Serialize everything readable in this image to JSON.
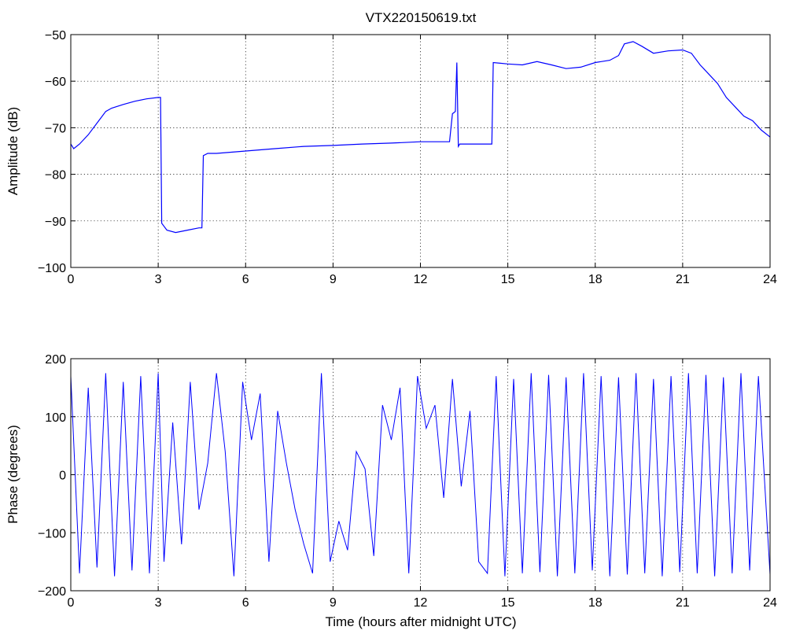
{
  "figure_title": "VTX220150619.txt",
  "chart_data": [
    {
      "type": "line",
      "title": "VTX220150619.txt",
      "xlabel": "",
      "ylabel": "Amplitude (dB)",
      "xlim": [
        0,
        24
      ],
      "ylim": [
        -100,
        -50
      ],
      "xticks": [
        0,
        3,
        6,
        9,
        12,
        15,
        18,
        21,
        24
      ],
      "yticks": [
        -50,
        -60,
        -70,
        -80,
        -90,
        -100
      ],
      "xtick_labels": [
        "0",
        "3",
        "6",
        "9",
        "12",
        "15",
        "18",
        "21",
        "24"
      ],
      "ytick_labels": [
        "−50",
        "−60",
        "−70",
        "−80",
        "−90",
        "−100"
      ],
      "grid": true,
      "color": "#0000ff",
      "series": [
        {
          "x": [
            0.0,
            0.1,
            0.3,
            0.6,
            0.9,
            1.2,
            1.4,
            1.8,
            2.2,
            2.6,
            3.0,
            3.08,
            3.12,
            3.3,
            3.6,
            4.0,
            4.4,
            4.5,
            4.55,
            4.7,
            5.0,
            6.0,
            7.0,
            8.0,
            9.0,
            10.0,
            11.0,
            12.0,
            13.0,
            13.1,
            13.2,
            13.25,
            13.3,
            13.35,
            13.4,
            13.7,
            14.0,
            14.4,
            14.45,
            14.5,
            15.0,
            15.5,
            16.0,
            16.5,
            17.0,
            17.5,
            18.0,
            18.5,
            18.8,
            19.0,
            19.3,
            19.6,
            20.0,
            20.5,
            21.0,
            21.3,
            21.6,
            21.9,
            22.2,
            22.5,
            22.8,
            23.1,
            23.4,
            23.7,
            24.0
          ],
          "y": [
            -73.5,
            -74.5,
            -73.5,
            -71.5,
            -69.0,
            -66.5,
            -65.8,
            -65.0,
            -64.3,
            -63.8,
            -63.5,
            -63.5,
            -90.5,
            -92.0,
            -92.5,
            -92.0,
            -91.5,
            -91.5,
            -76.0,
            -75.5,
            -75.5,
            -75.0,
            -74.5,
            -74.0,
            -73.8,
            -73.5,
            -73.3,
            -73.0,
            -73.0,
            -67.0,
            -66.5,
            -56.0,
            -74.0,
            -73.5,
            -73.5,
            -73.5,
            -73.5,
            -73.5,
            -73.5,
            -56.0,
            -56.3,
            -56.5,
            -55.8,
            -56.5,
            -57.3,
            -57.0,
            -56.0,
            -55.5,
            -54.5,
            -52.0,
            -51.5,
            -52.5,
            -54.0,
            -53.5,
            -53.3,
            -54.0,
            -56.5,
            -58.5,
            -60.5,
            -63.5,
            -65.5,
            -67.5,
            -68.5,
            -70.5,
            -72.0
          ]
        }
      ]
    },
    {
      "type": "line",
      "title": "",
      "xlabel": "Time (hours after midnight UTC)",
      "ylabel": "Phase (degrees)",
      "xlim": [
        0,
        24
      ],
      "ylim": [
        -200,
        200
      ],
      "xticks": [
        0,
        3,
        6,
        9,
        12,
        15,
        18,
        21,
        24
      ],
      "yticks": [
        200,
        100,
        0,
        -100,
        -200
      ],
      "xtick_labels": [
        "0",
        "3",
        "6",
        "9",
        "12",
        "15",
        "18",
        "21",
        "24"
      ],
      "ytick_labels": [
        "200",
        "100",
        "0",
        "−100",
        "−200"
      ],
      "grid": true,
      "color": "#0000ff",
      "series": [
        {
          "x": [
            0.0,
            0.3,
            0.6,
            0.9,
            1.2,
            1.5,
            1.8,
            2.1,
            2.4,
            2.7,
            3.0,
            3.2,
            3.5,
            3.8,
            4.1,
            4.4,
            4.7,
            5.0,
            5.3,
            5.6,
            5.9,
            6.2,
            6.5,
            6.8,
            7.1,
            7.4,
            7.7,
            8.0,
            8.3,
            8.6,
            8.9,
            9.2,
            9.5,
            9.8,
            10.1,
            10.4,
            10.7,
            11.0,
            11.3,
            11.6,
            11.9,
            12.2,
            12.5,
            12.8,
            13.1,
            13.4,
            13.7,
            14.0,
            14.3,
            14.6,
            14.9,
            15.2,
            15.5,
            15.8,
            16.1,
            16.4,
            16.7,
            17.0,
            17.3,
            17.6,
            17.9,
            18.2,
            18.5,
            18.8,
            19.1,
            19.4,
            19.7,
            20.0,
            20.3,
            20.6,
            20.9,
            21.2,
            21.5,
            21.8,
            22.1,
            22.4,
            22.7,
            23.0,
            23.3,
            23.6,
            24.0
          ],
          "y": [
            170,
            -170,
            150,
            -160,
            175,
            -175,
            160,
            -165,
            170,
            -170,
            175,
            -150,
            90,
            -120,
            160,
            -60,
            20,
            175,
            40,
            -175,
            160,
            60,
            140,
            -150,
            110,
            20,
            -60,
            -120,
            -170,
            175,
            -150,
            -80,
            -130,
            40,
            10,
            -140,
            120,
            60,
            150,
            -170,
            170,
            80,
            120,
            -40,
            165,
            -20,
            110,
            -150,
            -170,
            170,
            -175,
            165,
            -170,
            175,
            -168,
            172,
            -175,
            168,
            -170,
            175,
            -165,
            170,
            -175,
            168,
            -172,
            175,
            -170,
            165,
            -175,
            170,
            -168,
            175,
            -170,
            172,
            -175,
            168,
            -170,
            175,
            -165,
            170,
            -172
          ]
        }
      ]
    }
  ]
}
